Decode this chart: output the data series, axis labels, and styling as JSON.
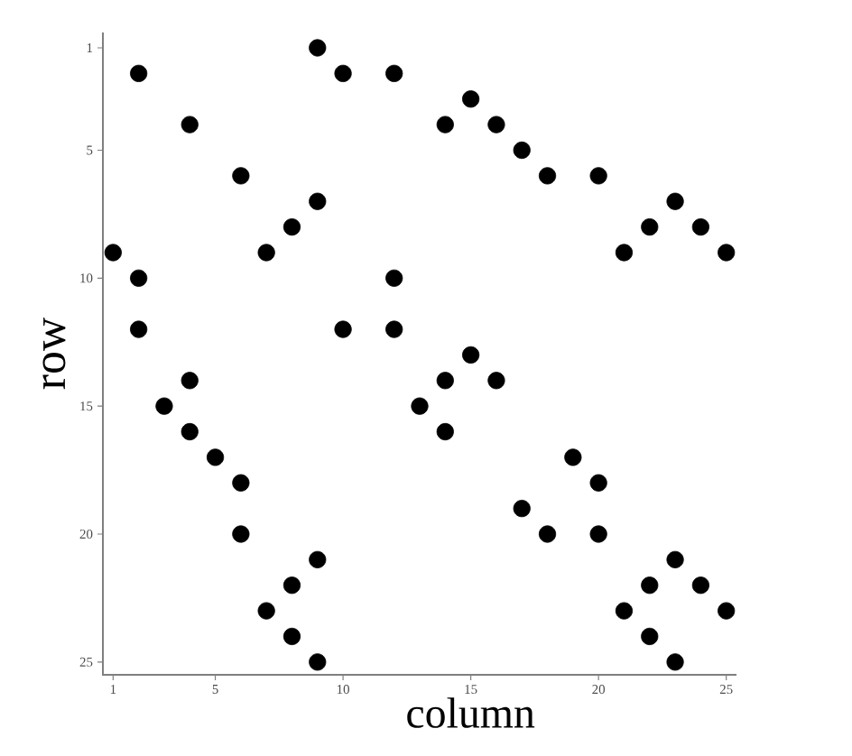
{
  "chart_data": {
    "type": "scatter",
    "xlabel": "column",
    "ylabel": "row",
    "x": [
      9,
      2,
      10,
      12,
      15,
      4,
      14,
      16,
      17,
      6,
      18,
      20,
      9,
      23,
      8,
      22,
      24,
      1,
      7,
      21,
      25,
      2,
      12,
      2,
      10,
      12,
      15,
      4,
      14,
      16,
      3,
      13,
      4,
      14,
      5,
      19,
      6,
      20,
      17,
      6,
      18,
      20,
      9,
      23,
      8,
      22,
      24,
      7,
      21,
      25,
      8,
      22,
      9,
      23
    ],
    "values": [
      1,
      2,
      2,
      2,
      3,
      4,
      4,
      4,
      5,
      6,
      6,
      6,
      7,
      7,
      8,
      8,
      8,
      9,
      9,
      9,
      9,
      10,
      10,
      12,
      12,
      12,
      13,
      14,
      14,
      14,
      15,
      15,
      16,
      16,
      17,
      17,
      18,
      18,
      19,
      20,
      20,
      20,
      21,
      21,
      22,
      22,
      22,
      23,
      23,
      23,
      24,
      24,
      25,
      25
    ],
    "color": "#000000",
    "marker": "circle",
    "xlim": [
      0.6,
      25.4
    ],
    "ylim": [
      25.5,
      0.4
    ],
    "xticks": [
      1,
      5,
      10,
      15,
      20,
      25
    ],
    "yticks": [
      1,
      5,
      10,
      15,
      20,
      25
    ]
  }
}
